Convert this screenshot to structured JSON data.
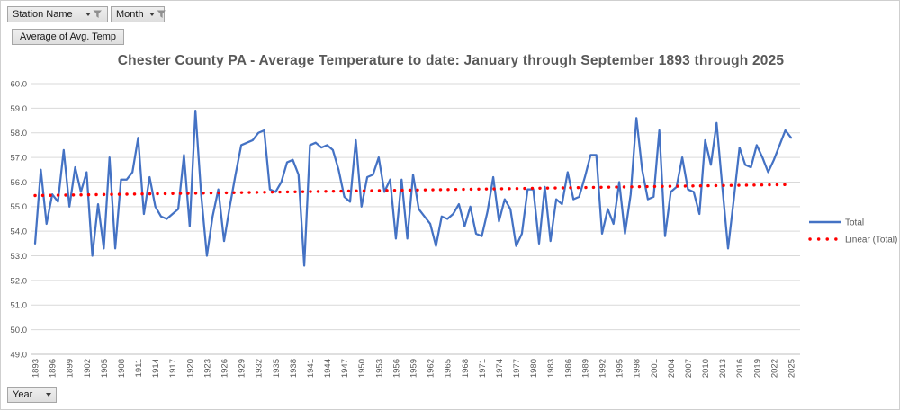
{
  "toolbar": {
    "station_filter_label": "Station Name",
    "month_filter_label": "Month",
    "value_button_label": "Average of Avg. Temp",
    "year_button_label": "Year"
  },
  "colors": {
    "series_blue": "#4472C4",
    "trend_red": "#FF0000",
    "grid": "#D9D9D9",
    "axis_line": "#BFBFBF",
    "axis_text": "#595959",
    "title_text": "#595959"
  },
  "chart_data": {
    "type": "line",
    "title": "Chester County PA - Average Temperature to date: January through September 1893 through 2025",
    "xlabel": "",
    "ylabel": "",
    "x_start": 1893,
    "x_end": 2025,
    "x_step": 1,
    "x_tick_step": 3,
    "ylim": [
      49.0,
      60.0
    ],
    "y_tick_step": 1.0,
    "grid": true,
    "legend_position": "right",
    "series": [
      {
        "name": "Total",
        "type": "line",
        "color": "#4472C4",
        "values": [
          53.5,
          56.5,
          54.3,
          55.5,
          55.2,
          57.3,
          55.0,
          56.6,
          55.6,
          56.4,
          53.0,
          55.1,
          53.3,
          57.0,
          53.3,
          56.1,
          56.1,
          56.4,
          57.8,
          54.7,
          56.2,
          55.0,
          54.6,
          54.5,
          54.7,
          54.9,
          57.1,
          54.2,
          58.9,
          55.5,
          53.0,
          54.6,
          55.7,
          53.6,
          55.0,
          56.3,
          57.5,
          57.6,
          57.7,
          58.0,
          58.1,
          55.7,
          55.6,
          56.0,
          56.8,
          56.9,
          56.3,
          52.6,
          57.5,
          57.6,
          57.4,
          57.5,
          57.3,
          56.5,
          55.4,
          55.2,
          57.7,
          55.0,
          56.2,
          56.3,
          57.0,
          55.6,
          56.1,
          53.7,
          56.1,
          53.7,
          56.3,
          54.9,
          54.6,
          54.3,
          53.4,
          54.6,
          54.5,
          54.7,
          55.1,
          54.2,
          55.0,
          53.9,
          53.8,
          54.8,
          56.2,
          54.4,
          55.3,
          54.9,
          53.4,
          53.9,
          55.7,
          55.7,
          53.5,
          55.8,
          53.6,
          55.3,
          55.1,
          56.4,
          55.3,
          55.4,
          56.2,
          57.1,
          57.1,
          53.9,
          54.9,
          54.3,
          56.0,
          53.9,
          55.5,
          58.6,
          56.5,
          55.3,
          55.4,
          58.1,
          53.8,
          55.6,
          55.8,
          57.0,
          55.7,
          55.6,
          54.7,
          57.7,
          56.7,
          58.4,
          55.8,
          53.3,
          55.3,
          57.4,
          56.7,
          56.6,
          57.5,
          57.0,
          56.4,
          56.9,
          57.5,
          58.1,
          57.8
        ]
      },
      {
        "name": "Linear (Total)",
        "type": "trendline",
        "color": "#FF0000",
        "style": "dotted",
        "start_value": 55.45,
        "end_value": 55.9
      }
    ]
  }
}
